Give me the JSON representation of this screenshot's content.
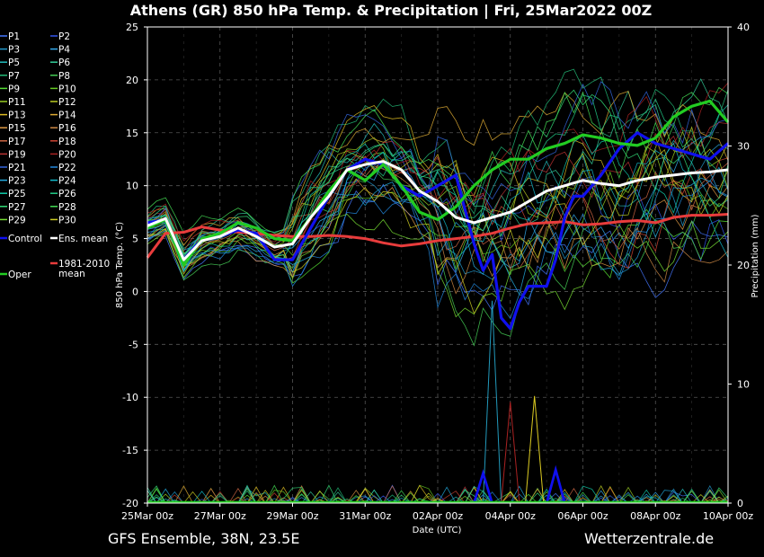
{
  "chart_data": {
    "type": "line",
    "title": "Athens  (GR)  850 hPa Temp. & Precipitation | Fri, 25Mar2022 00Z",
    "xlabel": "Date (UTC)",
    "ylabel": "850 hPa Temp. (°C)",
    "y2label": "Precipitation (mm)",
    "ylim": [
      -20,
      25
    ],
    "y2lim": [
      0,
      40
    ],
    "yticks": [
      -20,
      -15,
      -10,
      -5,
      0,
      5,
      10,
      15,
      20,
      25
    ],
    "y2ticks": [
      0,
      10,
      20,
      30,
      40
    ],
    "x_ticks": [
      "25Mar 00z",
      "27Mar 00z",
      "29Mar 00z",
      "31Mar 00z",
      "02Apr 00z",
      "04Apr 00z",
      "06Apr 00z",
      "08Apr 00z",
      "10Apr 00z"
    ],
    "x_range_hours": [
      0,
      384
    ],
    "grid": true,
    "footer_left": "GFS Ensemble, 38N, 23.5E",
    "footer_right": "Wetterzentrale.de",
    "legend_position": "left",
    "series": [
      {
        "name": "Control",
        "color": "#1010ee",
        "width": 3.2,
        "x": [
          0,
          12,
          24,
          36,
          48,
          60,
          72,
          84,
          96,
          108,
          120,
          132,
          144,
          156,
          168,
          180,
          192,
          204,
          216,
          222,
          228,
          234,
          240,
          246,
          252,
          258,
          264,
          270,
          276,
          282,
          288,
          300,
          312,
          324,
          336,
          348,
          360,
          372,
          384
        ],
        "y": [
          6.5,
          6.8,
          3.0,
          5.0,
          5.2,
          5.8,
          5.5,
          3.0,
          3.0,
          6.0,
          9.0,
          11.5,
          12.5,
          12.0,
          10.0,
          9.0,
          10.0,
          11.0,
          4.5,
          2.0,
          3.5,
          -2.5,
          -3.5,
          -1.0,
          0.5,
          0.5,
          0.5,
          3.0,
          7.0,
          9.0,
          9.0,
          11.0,
          13.5,
          15.0,
          14.0,
          13.5,
          13.0,
          12.5,
          14.0
        ]
      },
      {
        "name": "Oper",
        "color": "#22cc22",
        "width": 3.2,
        "x": [
          0,
          12,
          24,
          36,
          48,
          60,
          72,
          84,
          96,
          108,
          120,
          132,
          144,
          156,
          168,
          180,
          192,
          204,
          216,
          228,
          240,
          252,
          264,
          276,
          288,
          300,
          312,
          324,
          336,
          348,
          360,
          372,
          384
        ],
        "y": [
          6.0,
          6.8,
          2.5,
          5.0,
          5.5,
          6.5,
          6.0,
          5.0,
          4.8,
          7.0,
          9.5,
          11.5,
          10.5,
          12.0,
          10.0,
          7.5,
          6.8,
          8.0,
          10.0,
          11.5,
          12.5,
          12.5,
          13.5,
          14.0,
          14.8,
          14.5,
          14.0,
          13.8,
          14.5,
          16.5,
          17.5,
          18.0,
          16.0
        ]
      },
      {
        "name": "Ens. mean",
        "color": "#ffffff",
        "width": 3.0,
        "x": [
          0,
          12,
          24,
          36,
          48,
          60,
          72,
          84,
          96,
          108,
          120,
          132,
          144,
          156,
          168,
          180,
          192,
          204,
          216,
          228,
          240,
          252,
          264,
          276,
          288,
          300,
          312,
          324,
          336,
          348,
          360,
          372,
          384
        ],
        "y": [
          6.2,
          6.9,
          3.0,
          4.8,
          5.2,
          6.0,
          5.2,
          4.2,
          4.5,
          7.0,
          9.0,
          11.5,
          12.0,
          12.3,
          11.5,
          9.5,
          8.5,
          7.0,
          6.5,
          7.0,
          7.5,
          8.5,
          9.5,
          10.0,
          10.5,
          10.2,
          10.0,
          10.5,
          10.8,
          11.0,
          11.2,
          11.3,
          11.5
        ]
      },
      {
        "name": "1981-2010 mean",
        "color": "#e83c3c",
        "width": 3.0,
        "x": [
          0,
          12,
          24,
          36,
          48,
          60,
          72,
          84,
          96,
          108,
          120,
          132,
          144,
          156,
          168,
          180,
          192,
          204,
          216,
          228,
          240,
          252,
          264,
          276,
          288,
          300,
          312,
          324,
          336,
          348,
          360,
          372,
          384
        ],
        "y": [
          3.2,
          5.5,
          5.6,
          6.1,
          5.8,
          5.6,
          5.5,
          5.3,
          5.2,
          5.2,
          5.3,
          5.2,
          5.0,
          4.6,
          4.3,
          4.5,
          4.8,
          5.0,
          5.2,
          5.5,
          6.0,
          6.4,
          6.5,
          6.6,
          6.3,
          6.4,
          6.6,
          6.7,
          6.5,
          7.0,
          7.2,
          7.2,
          7.3
        ]
      }
    ],
    "members": [
      {
        "name": "P1",
        "color": "#4477ff"
      },
      {
        "name": "P2",
        "color": "#3355ee"
      },
      {
        "name": "P3",
        "color": "#2299cc"
      },
      {
        "name": "P4",
        "color": "#33aaee"
      },
      {
        "name": "P5",
        "color": "#22bbbb"
      },
      {
        "name": "P6",
        "color": "#33cc99"
      },
      {
        "name": "P7",
        "color": "#22bb77"
      },
      {
        "name": "P8",
        "color": "#44cc55"
      },
      {
        "name": "P9",
        "color": "#55dd33"
      },
      {
        "name": "P10",
        "color": "#66cc22"
      },
      {
        "name": "P11",
        "color": "#99cc22"
      },
      {
        "name": "P12",
        "color": "#bbcc22"
      },
      {
        "name": "P13",
        "color": "#ddbb22"
      },
      {
        "name": "P14",
        "color": "#ddaa33"
      },
      {
        "name": "P15",
        "color": "#dd9944"
      },
      {
        "name": "P16",
        "color": "#cc8844"
      },
      {
        "name": "P17",
        "color": "#cc6644"
      },
      {
        "name": "P18",
        "color": "#cc4433"
      },
      {
        "name": "P19",
        "color": "#bb3333"
      },
      {
        "name": "P20",
        "color": "#aa2222"
      },
      {
        "name": "P21",
        "color": "#3366dd"
      },
      {
        "name": "P22",
        "color": "#2288dd"
      },
      {
        "name": "P23",
        "color": "#22aadd"
      },
      {
        "name": "P24",
        "color": "#11bbcc"
      },
      {
        "name": "P25",
        "color": "#11ccaa"
      },
      {
        "name": "P26",
        "color": "#22cc88"
      },
      {
        "name": "P27",
        "color": "#33dd77"
      },
      {
        "name": "P28",
        "color": "#44dd55"
      },
      {
        "name": "P29",
        "color": "#77dd33"
      },
      {
        "name": "P30",
        "color": "#cccc22"
      }
    ],
    "members_note": "individual member values not readable; drawn as envelope spread",
    "precip_features": [
      {
        "color": "#2299bb",
        "x": 228,
        "y": 17.0
      },
      {
        "color": "#aa2222",
        "x": 240,
        "y": 8.5
      },
      {
        "color": "#ddcc22",
        "x": 256,
        "y": 9.0
      },
      {
        "color": "#1010ee",
        "x": 270,
        "y": 2.8
      },
      {
        "color": "#1010ee",
        "x": 222,
        "y": 2.5
      }
    ]
  }
}
